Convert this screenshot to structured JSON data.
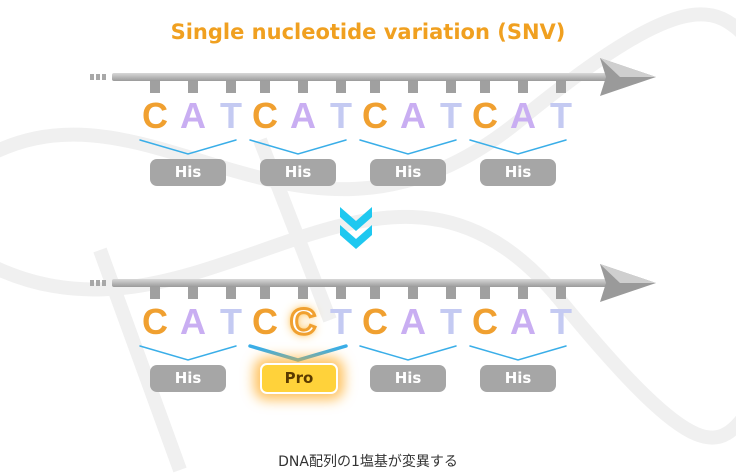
{
  "title": "Single nucleotide variation (SNV)",
  "colors": {
    "C": "#f0a030",
    "A": "#c9aef2",
    "T": "#c4caf2",
    "chevron": "#1ec8f0",
    "bracket": "#3aaee8"
  },
  "before": {
    "letters": [
      "C",
      "A",
      "T",
      "C",
      "A",
      "T",
      "C",
      "A",
      "T",
      "C",
      "A",
      "T"
    ],
    "codons": [
      "His",
      "His",
      "His",
      "His"
    ]
  },
  "after": {
    "letters": [
      "C",
      "A",
      "T",
      "C",
      "C",
      "T",
      "C",
      "A",
      "T",
      "C",
      "A",
      "T"
    ],
    "codons": [
      "His",
      "Pro",
      "His",
      "His"
    ],
    "mutated_index": 4,
    "mutated_codon": 1
  },
  "caption": "DNA配列の1塩基が変異する"
}
